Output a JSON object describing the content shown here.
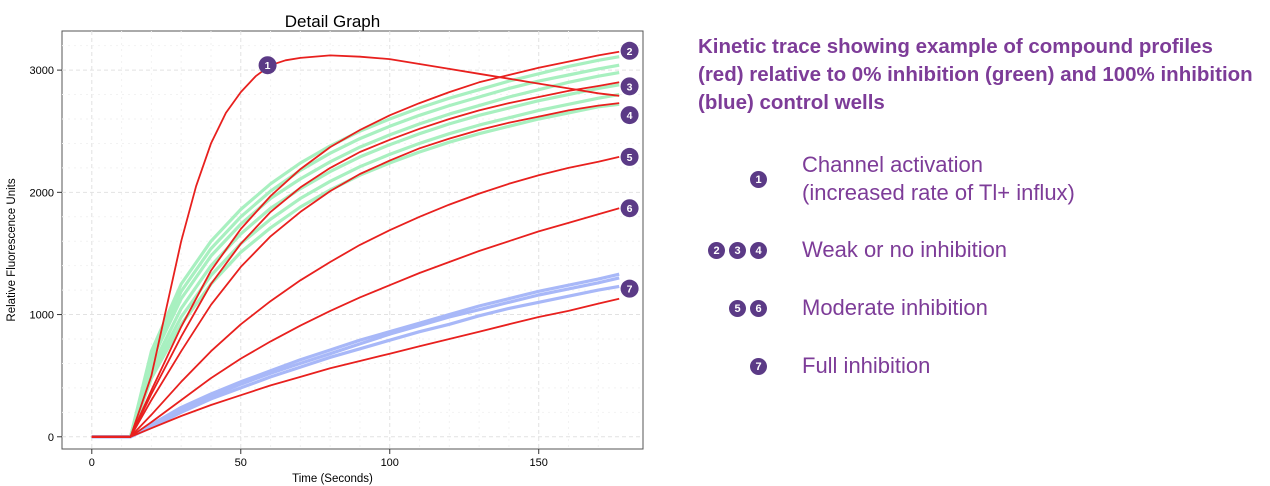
{
  "caption": "Kinetic trace showing example of compound profiles (red) relative to 0% inhibition (green) and 100% inhibition (blue) control wells",
  "legend": [
    {
      "markers": [
        "1"
      ],
      "lines": [
        "Channel activation",
        "(increased rate of Tl+ influx)"
      ]
    },
    {
      "markers": [
        "2",
        "3",
        "4"
      ],
      "lines": [
        "Weak or no inhibition"
      ]
    },
    {
      "markers": [
        "5",
        "6"
      ],
      "lines": [
        "Moderate inhibition"
      ]
    },
    {
      "markers": [
        "7"
      ],
      "lines": [
        "Full inhibition"
      ]
    }
  ],
  "colors": {
    "compound": "#e8201e",
    "zero_inhibition": "#a8f0c0",
    "full_inhibition": "#a8b8f8",
    "marker": "#5b3a86",
    "caption_text": "#7d3c98"
  },
  "chart_data": {
    "type": "line",
    "title": "Detail Graph",
    "xlabel": "Time (Seconds)",
    "ylabel": "Relative Fluorescence Units",
    "xlim": [
      -10,
      185
    ],
    "ylim": [
      -100,
      3320
    ],
    "xticks": [
      0,
      50,
      100,
      150
    ],
    "yticks": [
      0,
      1000,
      2000,
      3000
    ],
    "grid": true,
    "series": [
      {
        "group": "zero_inhibition",
        "x": [
          0,
          13,
          20,
          30,
          40,
          50,
          60,
          70,
          80,
          90,
          100,
          110,
          120,
          130,
          140,
          150,
          160,
          170,
          177
        ],
        "y": [
          0,
          0,
          620,
          1130,
          1480,
          1740,
          1950,
          2110,
          2250,
          2370,
          2470,
          2560,
          2640,
          2710,
          2780,
          2840,
          2900,
          2950,
          2980
        ]
      },
      {
        "group": "zero_inhibition",
        "x": [
          0,
          13,
          20,
          30,
          40,
          50,
          60,
          70,
          80,
          90,
          100,
          110,
          120,
          130,
          140,
          150,
          160,
          170,
          177
        ],
        "y": [
          0,
          0,
          700,
          1250,
          1600,
          1860,
          2070,
          2240,
          2380,
          2500,
          2600,
          2690,
          2770,
          2840,
          2910,
          2970,
          3030,
          3080,
          3110
        ]
      },
      {
        "group": "zero_inhibition",
        "x": [
          0,
          13,
          20,
          30,
          40,
          50,
          60,
          70,
          80,
          90,
          100,
          110,
          120,
          130,
          140,
          150,
          160,
          170,
          177
        ],
        "y": [
          0,
          0,
          560,
          1050,
          1400,
          1660,
          1870,
          2030,
          2170,
          2290,
          2390,
          2480,
          2560,
          2630,
          2690,
          2750,
          2800,
          2850,
          2880
        ]
      },
      {
        "group": "zero_inhibition",
        "x": [
          0,
          13,
          20,
          30,
          40,
          50,
          60,
          70,
          80,
          90,
          100,
          110,
          120,
          130,
          140,
          150,
          160,
          170,
          177
        ],
        "y": [
          0,
          0,
          520,
          980,
          1320,
          1580,
          1780,
          1950,
          2090,
          2210,
          2310,
          2400,
          2480,
          2550,
          2610,
          2670,
          2720,
          2770,
          2800
        ]
      },
      {
        "group": "zero_inhibition",
        "x": [
          0,
          13,
          20,
          30,
          40,
          50,
          60,
          70,
          80,
          90,
          100,
          110,
          120,
          130,
          140,
          150,
          160,
          170,
          177
        ],
        "y": [
          0,
          0,
          480,
          920,
          1250,
          1510,
          1710,
          1880,
          2020,
          2140,
          2240,
          2330,
          2410,
          2480,
          2540,
          2600,
          2650,
          2700,
          2720
        ]
      },
      {
        "group": "zero_inhibition",
        "x": [
          0,
          13,
          20,
          30,
          40,
          50,
          60,
          70,
          80,
          90,
          100,
          110,
          120,
          130,
          140,
          150,
          160,
          170,
          177
        ],
        "y": [
          0,
          0,
          660,
          1190,
          1540,
          1800,
          2010,
          2180,
          2320,
          2440,
          2540,
          2630,
          2710,
          2780,
          2850,
          2910,
          2960,
          3010,
          3040
        ]
      },
      {
        "group": "full_inhibition",
        "x": [
          0,
          13,
          20,
          30,
          40,
          50,
          60,
          70,
          80,
          90,
          100,
          110,
          120,
          130,
          140,
          150,
          160,
          170,
          177
        ],
        "y": [
          0,
          0,
          90,
          220,
          330,
          430,
          520,
          600,
          680,
          760,
          840,
          910,
          980,
          1040,
          1100,
          1160,
          1210,
          1260,
          1300
        ]
      },
      {
        "group": "full_inhibition",
        "x": [
          0,
          13,
          20,
          30,
          40,
          50,
          60,
          70,
          80,
          90,
          100,
          110,
          120,
          130,
          140,
          150,
          160,
          170,
          177
        ],
        "y": [
          0,
          0,
          80,
          200,
          310,
          400,
          490,
          570,
          650,
          720,
          790,
          860,
          920,
          990,
          1050,
          1100,
          1150,
          1200,
          1230
        ]
      },
      {
        "group": "full_inhibition",
        "x": [
          0,
          13,
          20,
          30,
          40,
          50,
          60,
          70,
          80,
          90,
          100,
          110,
          120,
          130,
          140,
          150,
          160,
          170,
          177
        ],
        "y": [
          0,
          0,
          100,
          240,
          350,
          450,
          540,
          630,
          710,
          790,
          860,
          930,
          1000,
          1070,
          1130,
          1190,
          1240,
          1290,
          1330
        ]
      },
      {
        "group": "compound",
        "label": "1",
        "x": [
          0,
          13,
          20,
          25,
          30,
          35,
          40,
          45,
          50,
          55,
          60,
          65,
          70,
          80,
          90,
          100,
          110,
          120,
          130,
          140,
          150,
          160,
          170,
          177
        ],
        "y": [
          0,
          0,
          500,
          1050,
          1600,
          2050,
          2400,
          2650,
          2820,
          2950,
          3040,
          3080,
          3100,
          3120,
          3110,
          3090,
          3050,
          3010,
          2970,
          2930,
          2890,
          2850,
          2810,
          2790
        ]
      },
      {
        "group": "compound",
        "label": "2",
        "x": [
          0,
          13,
          20,
          30,
          40,
          50,
          60,
          70,
          80,
          90,
          100,
          110,
          120,
          130,
          140,
          150,
          160,
          170,
          177
        ],
        "y": [
          0,
          0,
          380,
          900,
          1360,
          1700,
          1970,
          2190,
          2370,
          2510,
          2630,
          2730,
          2820,
          2900,
          2960,
          3020,
          3070,
          3120,
          3150
        ]
      },
      {
        "group": "compound",
        "label": "3",
        "x": [
          0,
          13,
          20,
          30,
          40,
          50,
          60,
          70,
          80,
          90,
          100,
          110,
          120,
          130,
          140,
          150,
          160,
          170,
          177
        ],
        "y": [
          0,
          0,
          350,
          820,
          1250,
          1580,
          1840,
          2040,
          2200,
          2330,
          2430,
          2520,
          2600,
          2670,
          2730,
          2780,
          2830,
          2870,
          2900
        ]
      },
      {
        "group": "compound",
        "label": "4",
        "x": [
          0,
          13,
          20,
          30,
          40,
          50,
          60,
          70,
          80,
          90,
          100,
          110,
          120,
          130,
          140,
          150,
          160,
          170,
          177
        ],
        "y": [
          0,
          0,
          300,
          700,
          1080,
          1390,
          1640,
          1840,
          2010,
          2150,
          2260,
          2360,
          2440,
          2510,
          2570,
          2620,
          2670,
          2710,
          2730
        ]
      },
      {
        "group": "compound",
        "label": "5",
        "x": [
          0,
          13,
          20,
          30,
          40,
          50,
          60,
          70,
          80,
          90,
          100,
          110,
          120,
          130,
          140,
          150,
          160,
          170,
          177
        ],
        "y": [
          0,
          0,
          180,
          450,
          700,
          920,
          1110,
          1280,
          1430,
          1570,
          1690,
          1800,
          1900,
          1990,
          2070,
          2140,
          2200,
          2250,
          2290
        ]
      },
      {
        "group": "compound",
        "label": "6",
        "x": [
          0,
          13,
          20,
          30,
          40,
          50,
          60,
          70,
          80,
          90,
          100,
          110,
          120,
          130,
          140,
          150,
          160,
          170,
          177
        ],
        "y": [
          0,
          0,
          120,
          300,
          480,
          640,
          780,
          910,
          1030,
          1140,
          1240,
          1340,
          1430,
          1520,
          1600,
          1680,
          1750,
          1820,
          1870
        ]
      },
      {
        "group": "compound",
        "label": "7",
        "x": [
          0,
          13,
          20,
          30,
          40,
          50,
          60,
          70,
          80,
          90,
          100,
          110,
          120,
          130,
          140,
          150,
          160,
          170,
          177
        ],
        "y": [
          0,
          0,
          70,
          170,
          260,
          340,
          420,
          490,
          560,
          620,
          680,
          740,
          800,
          860,
          920,
          980,
          1030,
          1090,
          1130
        ]
      }
    ]
  }
}
